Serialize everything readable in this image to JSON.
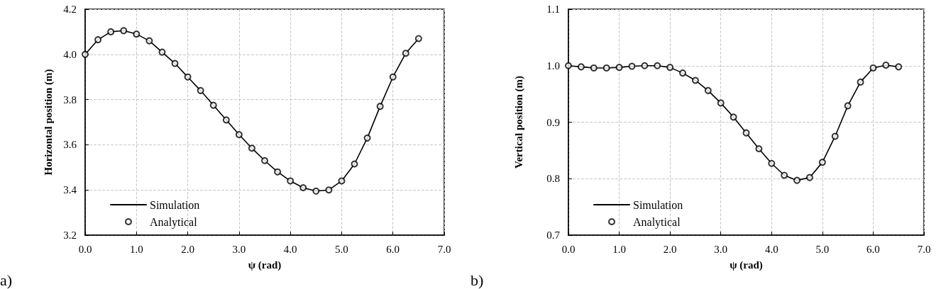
{
  "chart_data": [
    {
      "type": "line",
      "xlabel": "ψ (rad)",
      "ylabel": "Horizontal position (m)",
      "annotations": [
        "a)"
      ],
      "x": [
        0,
        0.25,
        0.5,
        0.75,
        1.0,
        1.25,
        1.5,
        1.75,
        2.0,
        2.25,
        2.5,
        2.75,
        3.0,
        3.25,
        3.5,
        3.75,
        4.0,
        4.25,
        4.5,
        4.75,
        5.0,
        5.25,
        5.5,
        5.75,
        6.0,
        6.25,
        6.5
      ],
      "series": [
        {
          "name": "Simulation",
          "type": "line",
          "color": "#000000",
          "marker": "none",
          "line_style": "solid",
          "values": [
            4.0,
            4.065,
            4.1,
            4.105,
            4.09,
            4.06,
            4.01,
            3.96,
            3.9,
            3.84,
            3.775,
            3.71,
            3.645,
            3.585,
            3.53,
            3.48,
            3.44,
            3.41,
            3.395,
            3.4,
            3.44,
            3.515,
            3.63,
            3.77,
            3.9,
            4.005,
            4.07
          ]
        },
        {
          "name": "Analytical",
          "type": "scatter",
          "color": "#000000",
          "marker": "circle",
          "values": [
            4.0,
            4.065,
            4.1,
            4.105,
            4.09,
            4.06,
            4.01,
            3.96,
            3.9,
            3.84,
            3.775,
            3.71,
            3.645,
            3.585,
            3.53,
            3.48,
            3.44,
            3.41,
            3.395,
            3.4,
            3.44,
            3.515,
            3.63,
            3.77,
            3.9,
            4.005,
            4.07
          ]
        }
      ],
      "xlim": [
        0,
        7
      ],
      "xticks": [
        {
          "value": 0,
          "label": "0.0"
        },
        {
          "value": 1,
          "label": "1.0"
        },
        {
          "value": 2,
          "label": "2.0"
        },
        {
          "value": 3,
          "label": "3.0"
        },
        {
          "value": 4,
          "label": "4.0"
        },
        {
          "value": 5,
          "label": "5.0"
        },
        {
          "value": 6,
          "label": "6.0"
        },
        {
          "value": 7,
          "label": "7.0"
        }
      ],
      "ylim": [
        3.2,
        4.2
      ],
      "yticks": [
        3.2,
        3.4,
        3.6,
        3.8,
        {
          "value": 4,
          "label": "4.0"
        },
        4.2
      ],
      "grid": true,
      "legend": "bottom left"
    },
    {
      "type": "line",
      "xlabel": "ψ (rad)",
      "ylabel": "Vertical position (m)",
      "annotations": [
        "b)"
      ],
      "x": [
        0,
        0.25,
        0.5,
        0.75,
        1.0,
        1.25,
        1.5,
        1.75,
        2.0,
        2.25,
        2.5,
        2.75,
        3.0,
        3.25,
        3.5,
        3.75,
        4.0,
        4.25,
        4.5,
        4.75,
        5.0,
        5.25,
        5.5,
        5.75,
        6.0,
        6.25,
        6.5
      ],
      "series": [
        {
          "name": "Simulation",
          "type": "line",
          "color": "#000000",
          "marker": "none",
          "line_style": "solid",
          "values": [
            1.0,
            0.998,
            0.996,
            0.996,
            0.997,
            0.999,
            1.0,
            1.0,
            0.997,
            0.987,
            0.974,
            0.956,
            0.934,
            0.909,
            0.881,
            0.853,
            0.827,
            0.806,
            0.797,
            0.802,
            0.829,
            0.875,
            0.929,
            0.971,
            0.996,
            1.001,
            0.998
          ]
        },
        {
          "name": "Analytical",
          "type": "scatter",
          "color": "#000000",
          "marker": "circle",
          "values": [
            1.0,
            0.998,
            0.996,
            0.996,
            0.997,
            0.999,
            1.0,
            1.0,
            0.997,
            0.987,
            0.974,
            0.956,
            0.934,
            0.909,
            0.881,
            0.853,
            0.827,
            0.806,
            0.797,
            0.802,
            0.829,
            0.875,
            0.929,
            0.971,
            0.996,
            1.001,
            0.998
          ]
        }
      ],
      "xlim": [
        0,
        7
      ],
      "xticks": [
        {
          "value": 0,
          "label": "0.0"
        },
        {
          "value": 1,
          "label": "1.0"
        },
        {
          "value": 2,
          "label": "2.0"
        },
        {
          "value": 3,
          "label": "3.0"
        },
        {
          "value": 4,
          "label": "4.0"
        },
        {
          "value": 5,
          "label": "5.0"
        },
        {
          "value": 6,
          "label": "6.0"
        },
        {
          "value": 7,
          "label": "7.0"
        }
      ],
      "ylim": [
        0.7,
        1.1
      ],
      "yticks": [
        0.7,
        0.8,
        0.9,
        {
          "value": 1,
          "label": "1.0"
        },
        1.1
      ],
      "grid": true,
      "legend": "bottom left"
    }
  ]
}
